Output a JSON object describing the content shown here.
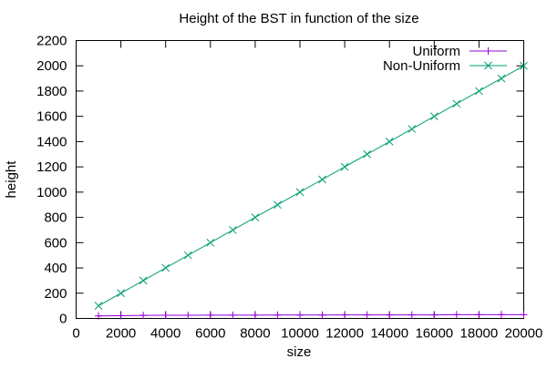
{
  "chart_data": {
    "type": "line",
    "title": "Height of the BST in function of the size",
    "xlabel": "size",
    "ylabel": "height",
    "xlim": [
      0,
      20000
    ],
    "ylim": [
      0,
      2200
    ],
    "xticks": [
      0,
      2000,
      4000,
      6000,
      8000,
      10000,
      12000,
      14000,
      16000,
      18000,
      20000
    ],
    "yticks": [
      0,
      200,
      400,
      600,
      800,
      1000,
      1200,
      1400,
      1600,
      1800,
      2000,
      2200
    ],
    "grid": false,
    "legend_position": "top-right",
    "x": [
      1000,
      2000,
      3000,
      4000,
      5000,
      6000,
      7000,
      8000,
      9000,
      10000,
      11000,
      12000,
      13000,
      14000,
      15000,
      16000,
      17000,
      18000,
      19000,
      20000
    ],
    "series": [
      {
        "name": "Uniform",
        "color": "#9400d3",
        "marker": "plus",
        "values": [
          20,
          22,
          24,
          25,
          25,
          26,
          26,
          26,
          27,
          27,
          27,
          28,
          28,
          28,
          28,
          28,
          30,
          30,
          30,
          30
        ]
      },
      {
        "name": "Non-Uniform",
        "color": "#009e73",
        "marker": "cross",
        "values": [
          100,
          200,
          300,
          400,
          500,
          600,
          700,
          800,
          900,
          1000,
          1100,
          1200,
          1300,
          1400,
          1500,
          1600,
          1700,
          1800,
          1900,
          2000
        ]
      }
    ]
  }
}
